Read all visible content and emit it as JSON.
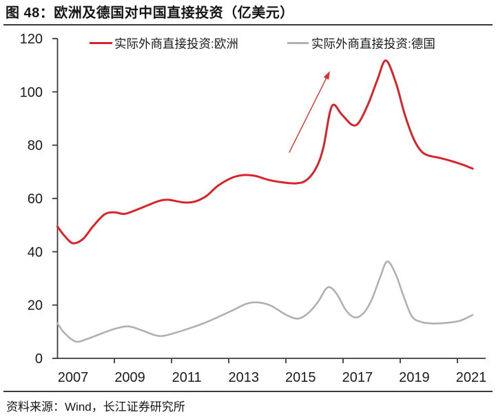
{
  "figure": {
    "title": "图 48：欧洲及德国对中国直接投资（亿美元）",
    "source": "资料来源：Wind，长江证券研究所"
  },
  "chart_data": {
    "type": "line",
    "title": "图 48：欧洲及德国对中国直接投资（亿美元）",
    "unit": "亿美元",
    "grid": false,
    "legend_position": "top",
    "ylim": [
      0,
      120
    ],
    "y_ticks": [
      0,
      20,
      40,
      60,
      80,
      100,
      120
    ],
    "x_tick_labels": [
      "2007",
      "2009",
      "2011",
      "2013",
      "2015",
      "2017",
      "2019",
      "2021"
    ],
    "x_range_years": [
      2006.45,
      2021.05
    ],
    "colors": {
      "europe": "#d8232a",
      "germany": "#b0b0b0",
      "axis": "#3a3a3a",
      "text": "#1a1a1a",
      "arrow": "#dc2f2f"
    },
    "series": [
      {
        "name": "实际外商直接投资:欧洲",
        "color": "#d8232a",
        "points": [
          [
            2006.45,
            49.5
          ],
          [
            2006.7,
            46.0
          ],
          [
            2007.0,
            43.2
          ],
          [
            2007.35,
            44.8
          ],
          [
            2007.7,
            49.5
          ],
          [
            2008.1,
            54.0
          ],
          [
            2008.45,
            54.8
          ],
          [
            2008.8,
            54.2
          ],
          [
            2009.2,
            55.6
          ],
          [
            2009.6,
            57.3
          ],
          [
            2010.0,
            59.0
          ],
          [
            2010.35,
            59.5
          ],
          [
            2010.9,
            58.5
          ],
          [
            2011.3,
            58.9
          ],
          [
            2011.7,
            61.0
          ],
          [
            2012.1,
            64.8
          ],
          [
            2012.6,
            67.8
          ],
          [
            2013.0,
            68.8
          ],
          [
            2013.4,
            68.5
          ],
          [
            2013.9,
            66.9
          ],
          [
            2014.4,
            66.0
          ],
          [
            2014.85,
            65.7
          ],
          [
            2015.2,
            66.8
          ],
          [
            2015.55,
            71.5
          ],
          [
            2015.8,
            79.0
          ],
          [
            2016.1,
            94.6
          ],
          [
            2016.45,
            91.5
          ],
          [
            2016.8,
            87.7
          ],
          [
            2017.05,
            88.5
          ],
          [
            2017.4,
            96.0
          ],
          [
            2017.7,
            104.5
          ],
          [
            2018.0,
            111.8
          ],
          [
            2018.35,
            103.5
          ],
          [
            2018.65,
            92.0
          ],
          [
            2018.95,
            83.0
          ],
          [
            2019.2,
            78.3
          ],
          [
            2019.45,
            76.3
          ],
          [
            2019.9,
            75.2
          ],
          [
            2020.35,
            73.9
          ],
          [
            2020.7,
            72.7
          ],
          [
            2021.05,
            71.2
          ]
        ]
      },
      {
        "name": "实际外商直接投资:德国",
        "color": "#b0b0b0",
        "points": [
          [
            2006.45,
            13.2
          ],
          [
            2006.7,
            9.5
          ],
          [
            2007.1,
            6.3
          ],
          [
            2007.5,
            7.3
          ],
          [
            2008.0,
            9.3
          ],
          [
            2008.5,
            11.2
          ],
          [
            2008.95,
            12.0
          ],
          [
            2009.4,
            10.6
          ],
          [
            2009.85,
            8.8
          ],
          [
            2010.15,
            8.4
          ],
          [
            2010.6,
            9.6
          ],
          [
            2011.1,
            11.3
          ],
          [
            2011.6,
            13.2
          ],
          [
            2012.1,
            15.5
          ],
          [
            2012.65,
            18.2
          ],
          [
            2013.1,
            20.5
          ],
          [
            2013.5,
            21.0
          ],
          [
            2013.95,
            19.8
          ],
          [
            2014.5,
            16.3
          ],
          [
            2014.9,
            14.9
          ],
          [
            2015.25,
            16.8
          ],
          [
            2015.6,
            21.0
          ],
          [
            2015.95,
            26.6
          ],
          [
            2016.25,
            24.5
          ],
          [
            2016.6,
            18.0
          ],
          [
            2016.9,
            15.4
          ],
          [
            2017.2,
            16.8
          ],
          [
            2017.5,
            22.0
          ],
          [
            2017.8,
            30.5
          ],
          [
            2018.05,
            36.4
          ],
          [
            2018.35,
            31.5
          ],
          [
            2018.6,
            24.0
          ],
          [
            2018.9,
            16.0
          ],
          [
            2019.2,
            13.8
          ],
          [
            2019.6,
            13.1
          ],
          [
            2020.1,
            13.3
          ],
          [
            2020.6,
            14.1
          ],
          [
            2021.05,
            16.3
          ]
        ]
      }
    ],
    "annotation_arrow": {
      "from": [
        2014.6,
        77.2
      ],
      "to": [
        2016.03,
        107.8
      ]
    }
  }
}
